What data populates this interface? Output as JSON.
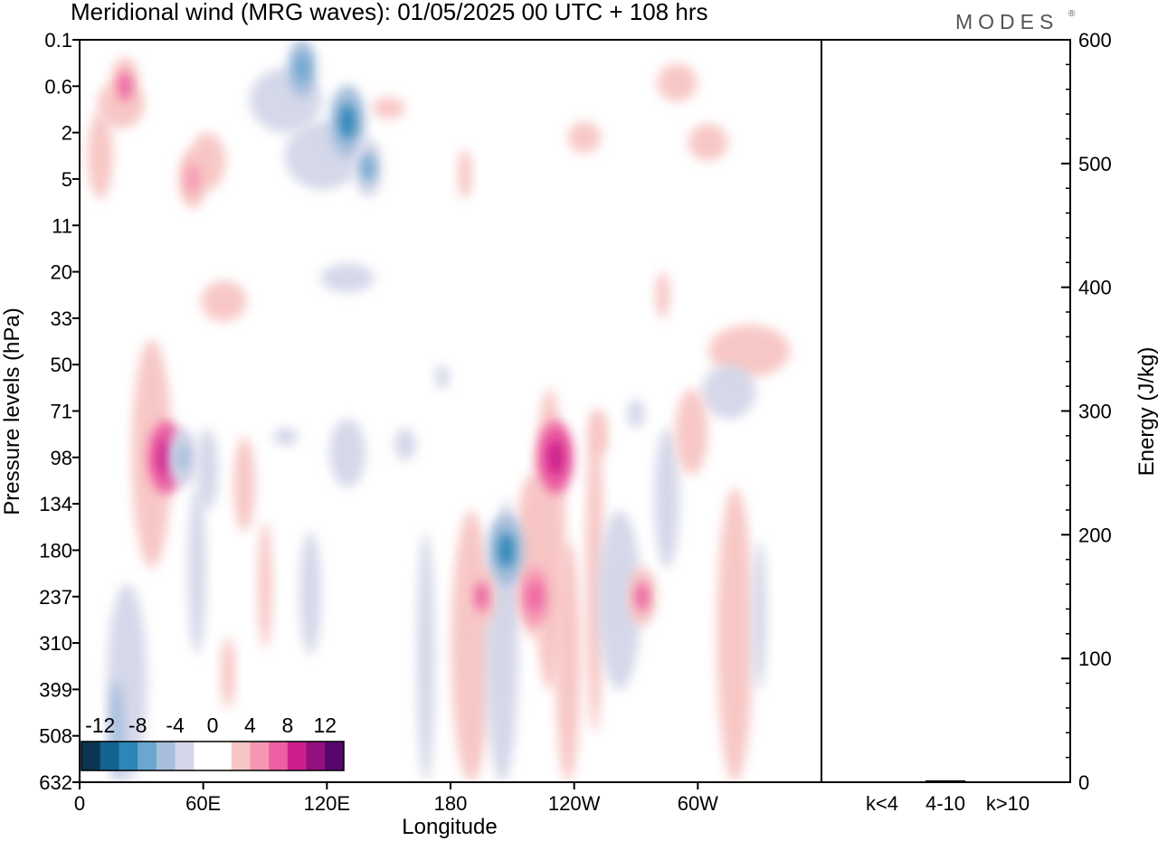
{
  "header": {
    "title": "Meridional wind (MRG waves):  01/05/2025  00 UTC  + 108 hrs",
    "logo": "MODES",
    "logo_mark": "®"
  },
  "chart_data": [
    {
      "type": "heatmap",
      "title": "Meridional wind (MRG waves):  01/05/2025  00 UTC  + 108 hrs",
      "xlabel": "Longitude",
      "ylabel": "Pressure levels (hPa)",
      "x_ticks": [
        "0",
        "60E",
        "120E",
        "180",
        "120W",
        "60W"
      ],
      "x_range": [
        0,
        360
      ],
      "y_ticks": [
        "0.1",
        "0.6",
        "2",
        "5",
        "11",
        "20",
        "33",
        "50",
        "71",
        "98",
        "134",
        "180",
        "237",
        "310",
        "399",
        "508",
        "632"
      ],
      "colorbar": {
        "labels": [
          "-12",
          "-8",
          "-4",
          "0",
          "4",
          "8",
          "12"
        ],
        "colors": [
          "#0b3550",
          "#14628f",
          "#2e86b6",
          "#6aa6cf",
          "#a6bedc",
          "#d3d6e8",
          "#ffffff",
          "#ffffff",
          "#f7c5c3",
          "#f696b2",
          "#ec5fa2",
          "#cc1e8c",
          "#94107c",
          "#59066c"
        ]
      },
      "contours": [
        {
          "lon": 42,
          "pressure": 98,
          "value": 9
        },
        {
          "lon": 231,
          "pressure": 98,
          "value": 9
        },
        {
          "lon": 207,
          "pressure": 180,
          "value": -8
        },
        {
          "lon": 195,
          "pressure": 237,
          "value": 6
        },
        {
          "lon": 221,
          "pressure": 237,
          "value": 7
        },
        {
          "lon": 273,
          "pressure": 237,
          "value": 6
        },
        {
          "lon": 108,
          "pressure": 0.3,
          "value": -7
        },
        {
          "lon": 130,
          "pressure": 1.5,
          "value": -8
        },
        {
          "lon": 140,
          "pressure": 4,
          "value": -6
        },
        {
          "lon": 22,
          "pressure": 0.6,
          "value": 6
        },
        {
          "lon": 55,
          "pressure": 5,
          "value": 5
        },
        {
          "lon": 50,
          "pressure": 98,
          "value": -5
        }
      ]
    },
    {
      "type": "bar",
      "categories": [
        "k<4",
        "4-10",
        "k>10"
      ],
      "values": [
        0.5,
        1.5,
        0.3
      ],
      "ylabel": "Energy (J/kg)",
      "ylim": [
        0,
        600
      ],
      "y_ticks": [
        "0",
        "100",
        "200",
        "300",
        "400",
        "500",
        "600"
      ]
    }
  ]
}
